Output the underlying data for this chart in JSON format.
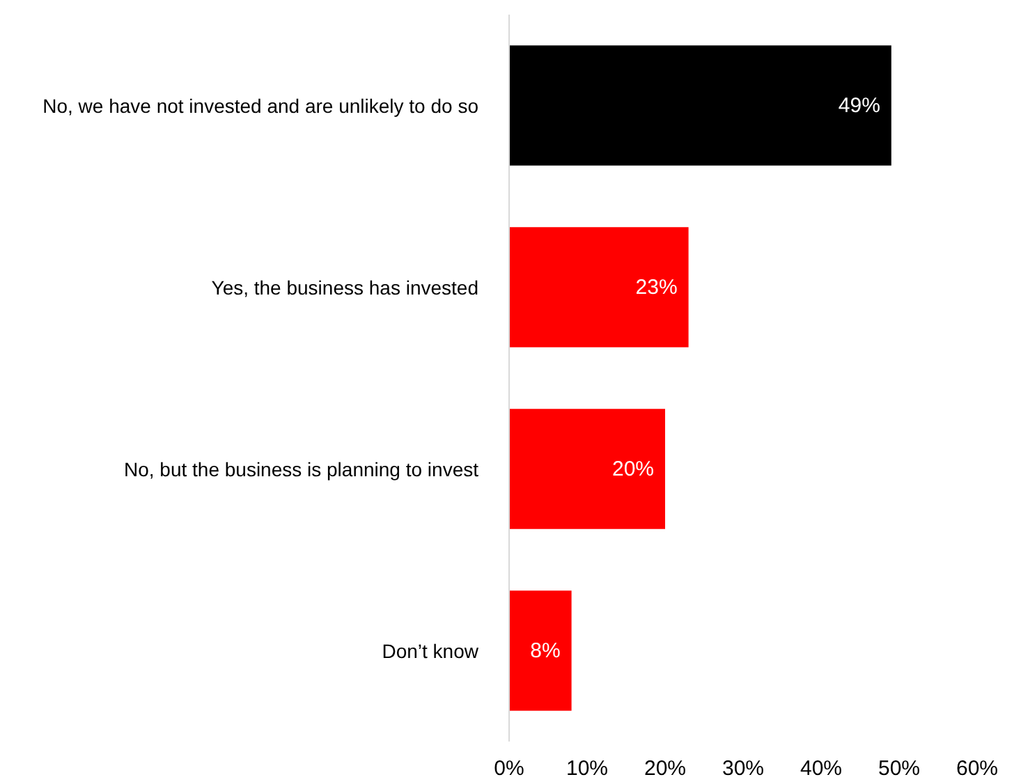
{
  "chart_data": {
    "type": "bar",
    "orientation": "horizontal",
    "categories": [
      "No, we have not invested and are unlikely to do so",
      "Yes, the business has invested",
      "No, but the business is planning to invest",
      "Don’t know"
    ],
    "values": [
      49,
      23,
      20,
      8
    ],
    "colors": [
      "#000000",
      "#ff0000",
      "#ff0000",
      "#ff0000"
    ],
    "value_labels": [
      "49%",
      "23%",
      "20%",
      "8%"
    ],
    "xlim": [
      0,
      60
    ],
    "xticks": [
      {
        "value": 0,
        "label": "0%"
      },
      {
        "value": 10,
        "label": "10%"
      },
      {
        "value": 20,
        "label": "20%"
      },
      {
        "value": 30,
        "label": "30%"
      },
      {
        "value": 40,
        "label": "40%"
      },
      {
        "value": 50,
        "label": "50%"
      },
      {
        "value": 60,
        "label": "60%"
      }
    ],
    "grid": false
  }
}
